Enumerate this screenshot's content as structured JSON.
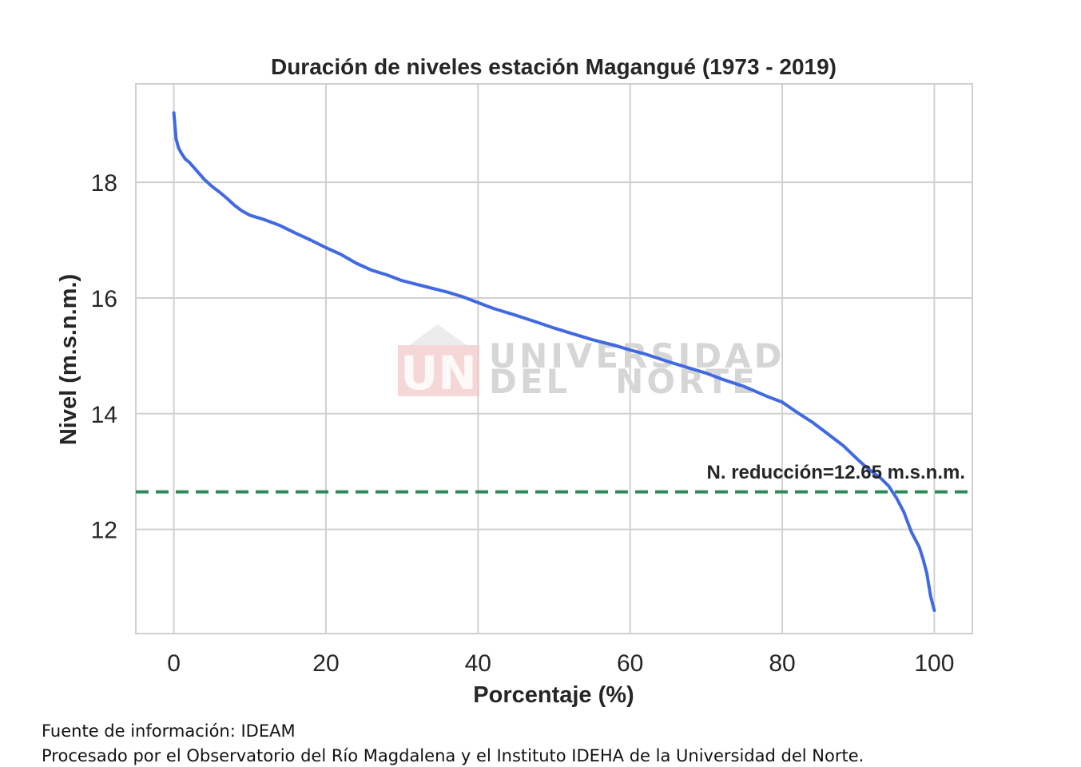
{
  "chart_data": {
    "type": "line",
    "title": "Duración de niveles estación Magangué (1973 - 2019)",
    "xlabel": "Porcentaje (%)",
    "ylabel": "Nivel (m.s.n.m.)",
    "xlim": [
      -5,
      105
    ],
    "ylim": [
      10.2,
      19.7
    ],
    "xticks": [
      0,
      20,
      40,
      60,
      80,
      100
    ],
    "yticks": [
      12,
      14,
      16,
      18
    ],
    "grid": true,
    "series": [
      {
        "color": "#4169e1",
        "x": [
          0,
          0.3,
          0.6,
          1,
          1.5,
          2,
          3,
          4,
          5,
          6,
          7,
          8,
          9,
          10,
          12,
          14,
          16,
          18,
          20,
          22,
          24,
          26,
          28,
          30,
          33,
          36,
          38,
          40,
          42,
          45,
          48,
          50,
          52,
          55,
          58,
          60,
          62,
          65,
          68,
          70,
          72,
          75,
          78,
          80,
          82,
          84,
          86,
          88,
          90,
          91,
          92,
          93,
          94,
          95,
          96,
          97,
          98,
          98.5,
          99,
          99.5,
          100
        ],
        "y": [
          19.2,
          18.75,
          18.6,
          18.5,
          18.4,
          18.35,
          18.2,
          18.05,
          17.93,
          17.83,
          17.72,
          17.6,
          17.5,
          17.43,
          17.35,
          17.25,
          17.12,
          17.0,
          16.87,
          16.75,
          16.6,
          16.48,
          16.4,
          16.3,
          16.2,
          16.1,
          16.02,
          15.92,
          15.82,
          15.7,
          15.57,
          15.48,
          15.4,
          15.28,
          15.18,
          15.1,
          15.03,
          14.9,
          14.78,
          14.7,
          14.6,
          14.47,
          14.3,
          14.2,
          14.02,
          13.85,
          13.65,
          13.45,
          13.2,
          13.08,
          12.98,
          12.88,
          12.75,
          12.55,
          12.3,
          11.95,
          11.7,
          11.5,
          11.25,
          10.85,
          10.6
        ]
      }
    ],
    "hline": {
      "y": 12.65,
      "color": "#2e8b57",
      "style": "dashed",
      "label": "N. reducción=12.65 m.s.n.m."
    }
  },
  "watermark": {
    "logo": "UN",
    "line1": "UNIVERSIDAD",
    "line2": "DEL   NORTE"
  },
  "footer": {
    "line1": "Fuente de información: IDEAM",
    "line2": "Procesado por el Observatorio del Río Magdalena y el Instituto IDEHA de la Universidad del Norte."
  }
}
